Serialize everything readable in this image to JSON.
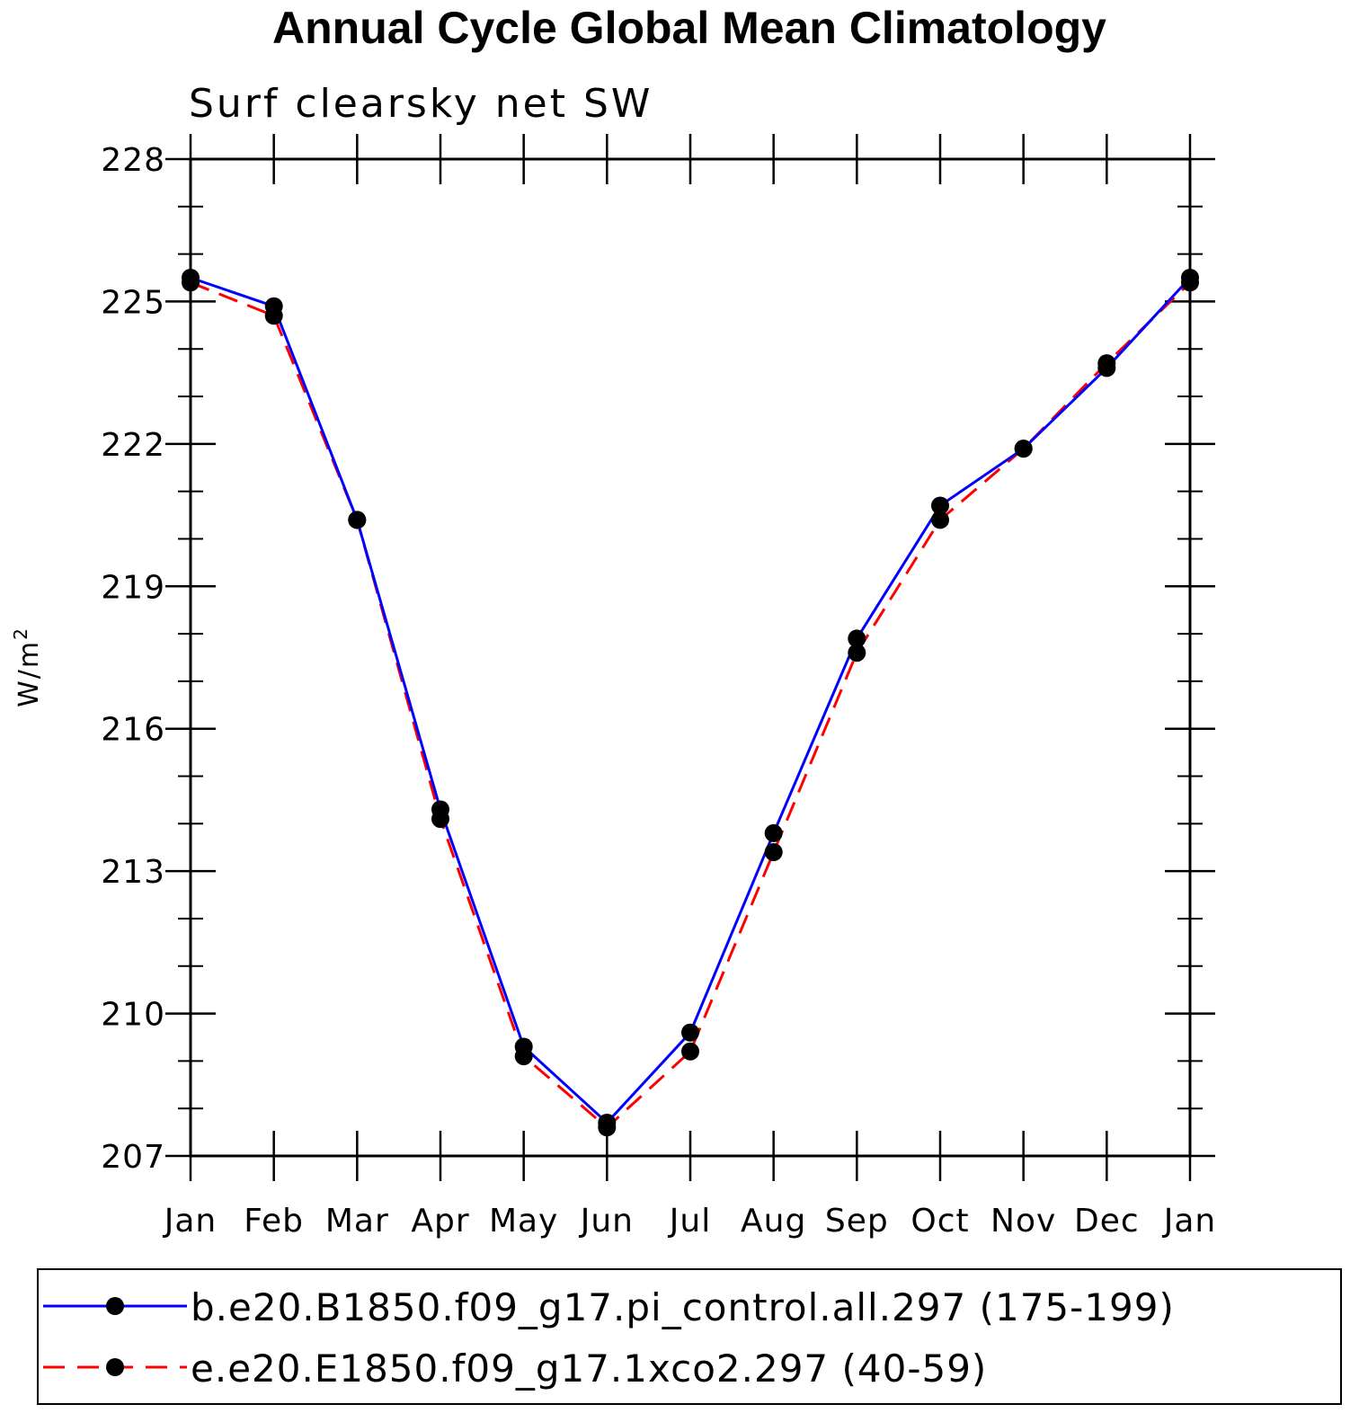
{
  "chart_data": {
    "type": "line",
    "title": "Annual Cycle Global Mean Climatology",
    "subtitle": "Surf clearsky net SW",
    "ylabel": "W/m",
    "ylabel_sup": "2",
    "xlabel": "",
    "categories": [
      "Jan",
      "Feb",
      "Mar",
      "Apr",
      "May",
      "Jun",
      "Jul",
      "Aug",
      "Sep",
      "Oct",
      "Nov",
      "Dec",
      "Jan"
    ],
    "ylim": [
      207,
      228
    ],
    "yticks": [
      207,
      210,
      213,
      216,
      219,
      222,
      225,
      228
    ],
    "series": [
      {
        "name": "b.e20.B1850.f09_g17.pi_control.all.297 (175-199)",
        "color": "#0000ff",
        "dash": "solid",
        "values": [
          225.5,
          224.9,
          220.4,
          214.3,
          209.3,
          207.7,
          209.6,
          213.8,
          217.9,
          220.7,
          221.9,
          223.6,
          225.5
        ]
      },
      {
        "name": "e.e20.E1850.f09_g17.1xco2.297 (40-59)",
        "color": "#ff0000",
        "dash": "dashed",
        "values": [
          225.4,
          224.7,
          220.4,
          214.1,
          209.1,
          207.6,
          209.2,
          213.4,
          217.6,
          220.4,
          221.9,
          223.7,
          225.4
        ]
      }
    ],
    "legend_position": "bottom",
    "grid": false
  }
}
